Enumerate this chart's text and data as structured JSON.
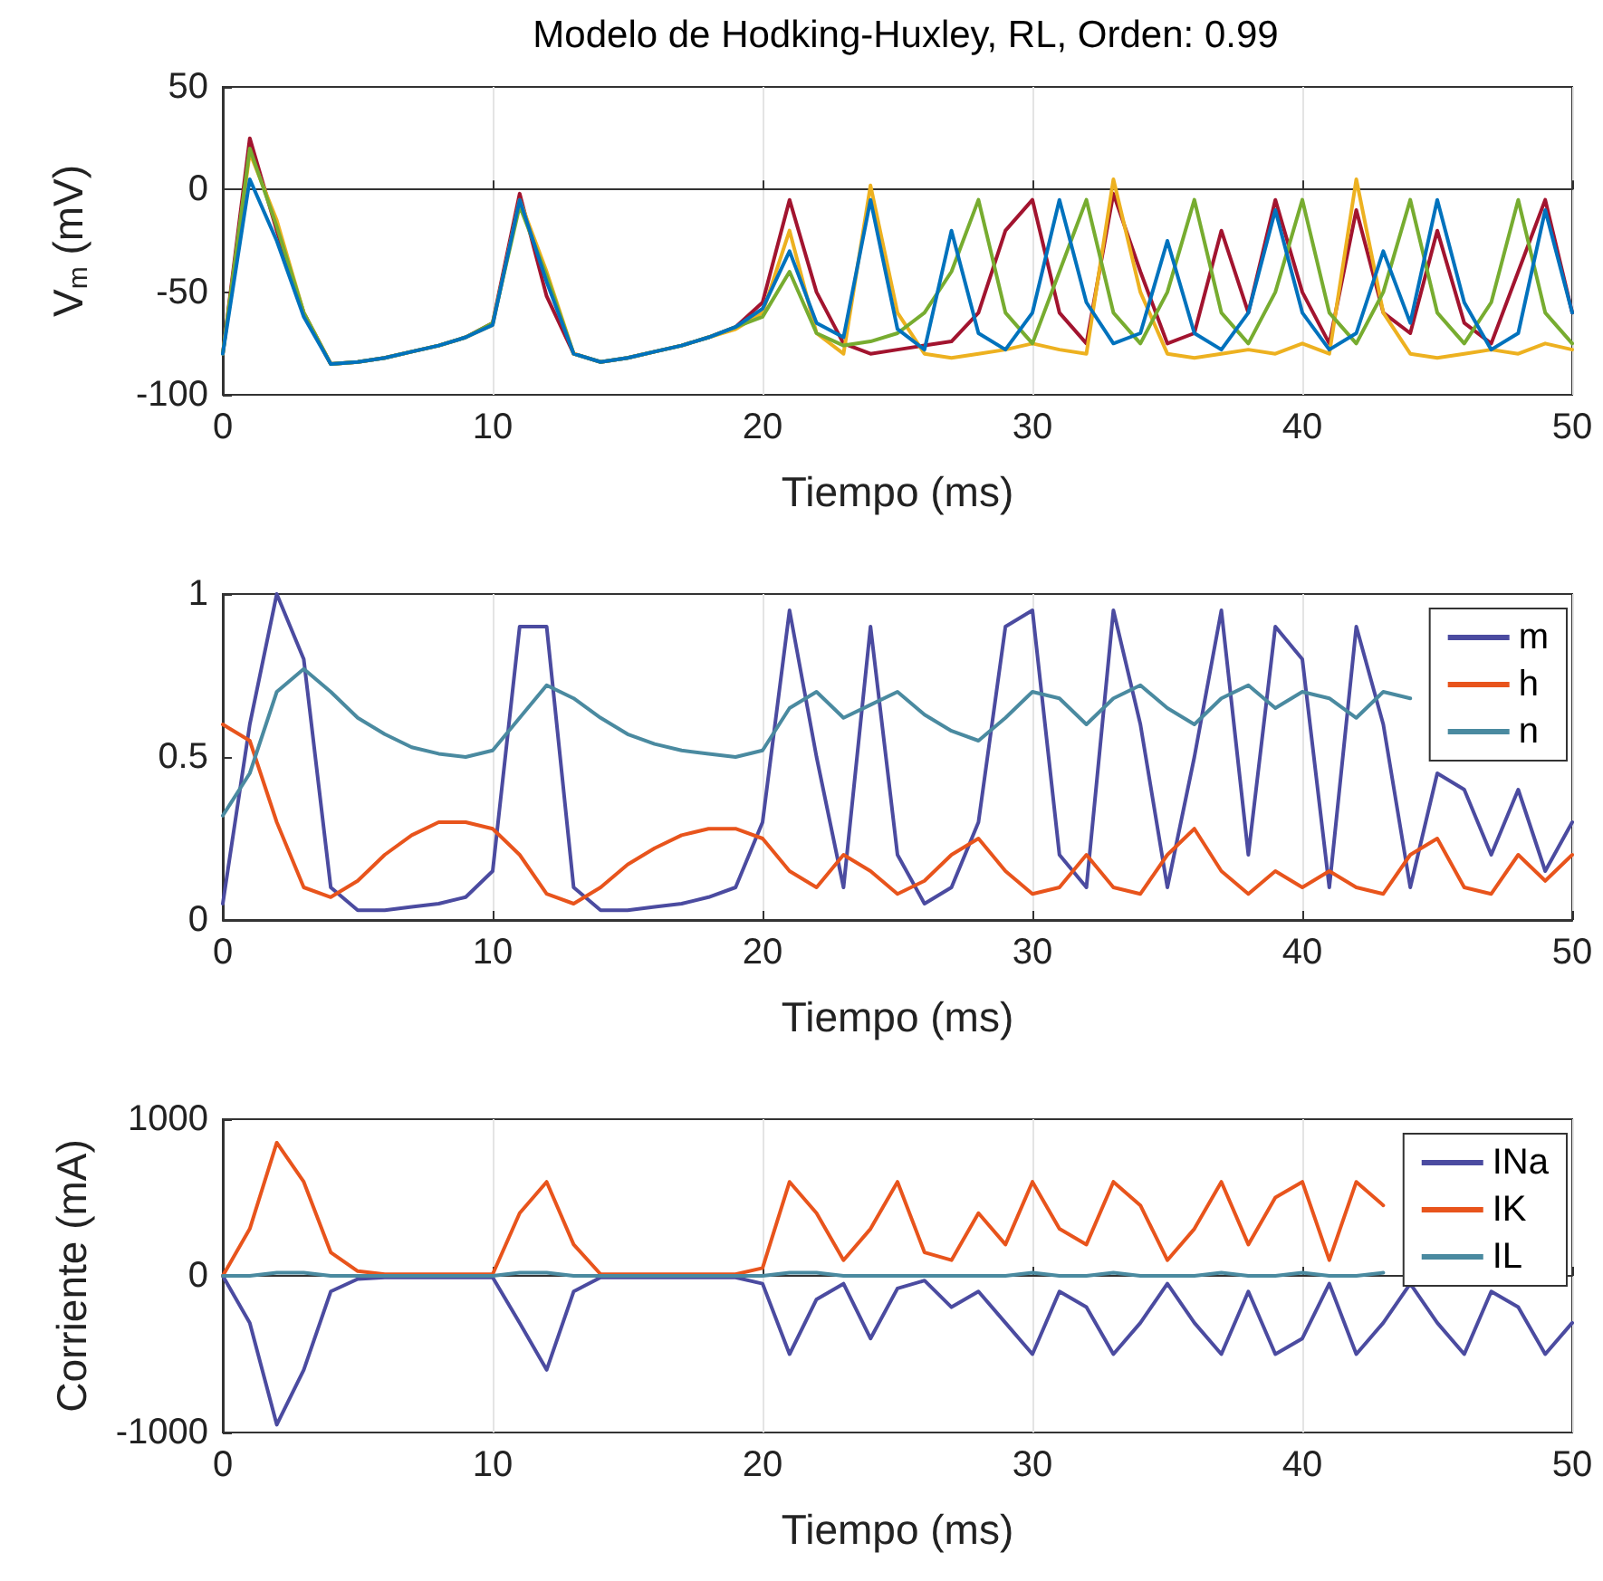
{
  "chart_data": [
    {
      "type": "line",
      "title": "Modelo de Hodking-Huxley, RL, Orden: 0.99",
      "xlabel": "Tiempo (ms)",
      "ylabel": "V$_{m}$ (mV)",
      "xlim": [
        0,
        50
      ],
      "xticks": [
        0,
        10,
        20,
        30,
        40,
        50
      ],
      "ylim": [
        -100,
        50
      ],
      "yticks": [
        -100,
        -50,
        0,
        50
      ],
      "grid": "x",
      "legend": false,
      "marker": "none",
      "line_style": "solid",
      "x": [
        0,
        1,
        2,
        3,
        4,
        5,
        6,
        7,
        8,
        9,
        10,
        11,
        12,
        13,
        14,
        15,
        16,
        17,
        18,
        19,
        20,
        21,
        22,
        23,
        24,
        25,
        26,
        27,
        28,
        29,
        30,
        31,
        32,
        33,
        34,
        35,
        36,
        37,
        38,
        39,
        40,
        41,
        42,
        43,
        44,
        45,
        46,
        47,
        48,
        49,
        50
      ],
      "series": [
        {
          "color": "#a2142f",
          "values": [
            -80,
            25,
            -20,
            -60,
            -85,
            -84,
            -82,
            -79,
            -76,
            -72,
            -65,
            -2,
            -52,
            -80,
            -84,
            -82,
            -79,
            -76,
            -72,
            -67,
            -55,
            -5,
            -50,
            -75,
            -80,
            -78,
            -76,
            -74,
            -60,
            -20,
            -5,
            -60,
            -75,
            -2,
            -40,
            -75,
            -70,
            -20,
            -60,
            -5,
            -50,
            -75,
            -10,
            -60,
            -70,
            -20,
            -65,
            -75,
            -40,
            -5,
            -60
          ]
        },
        {
          "color": "#edb120",
          "values": [
            -80,
            18,
            -15,
            -60,
            -85,
            -84,
            -82,
            -79,
            -76,
            -72,
            -66,
            -5,
            -40,
            -80,
            -84,
            -82,
            -79,
            -76,
            -72,
            -68,
            -60,
            -20,
            -70,
            -80,
            2,
            -60,
            -80,
            -82,
            -80,
            -78,
            -75,
            -78,
            -80,
            5,
            -50,
            -80,
            -82,
            -80,
            -78,
            -80,
            -75,
            -80,
            5,
            -60,
            -80,
            -82,
            -80,
            -78,
            -80,
            -75,
            -78
          ]
        },
        {
          "color": "#77ac30",
          "values": [
            -80,
            20,
            -18,
            -60,
            -85,
            -84,
            -82,
            -79,
            -76,
            -72,
            -65,
            -8,
            -42,
            -80,
            -84,
            -82,
            -79,
            -76,
            -72,
            -67,
            -62,
            -40,
            -70,
            -76,
            -74,
            -70,
            -60,
            -40,
            -5,
            -60,
            -75,
            -40,
            -5,
            -60,
            -75,
            -50,
            -5,
            -60,
            -75,
            -50,
            -5,
            -60,
            -75,
            -50,
            -5,
            -60,
            -75,
            -55,
            -5,
            -60,
            -75
          ]
        },
        {
          "color": "#0072bd",
          "values": [
            -80,
            5,
            -25,
            -62,
            -85,
            -84,
            -82,
            -79,
            -76,
            -72,
            -66,
            -5,
            -45,
            -80,
            -84,
            -82,
            -79,
            -76,
            -72,
            -67,
            -58,
            -30,
            -65,
            -72,
            -5,
            -68,
            -78,
            -20,
            -70,
            -78,
            -60,
            -5,
            -55,
            -75,
            -70,
            -25,
            -70,
            -78,
            -60,
            -10,
            -60,
            -78,
            -70,
            -30,
            -65,
            -5,
            -55,
            -78,
            -70,
            -10,
            -60
          ]
        }
      ]
    },
    {
      "type": "line",
      "xlabel": "Tiempo (ms)",
      "xlim": [
        0,
        50
      ],
      "xticks": [
        0,
        10,
        20,
        30,
        40,
        50
      ],
      "ylim": [
        0,
        1
      ],
      "yticks": [
        0,
        0.5,
        1
      ],
      "grid": "x",
      "legend": "top right",
      "marker": "none",
      "line_style": "solid",
      "x": [
        0,
        1,
        2,
        3,
        4,
        5,
        6,
        7,
        8,
        9,
        10,
        11,
        12,
        13,
        14,
        15,
        16,
        17,
        18,
        19,
        20,
        21,
        22,
        23,
        24,
        25,
        26,
        27,
        28,
        29,
        30,
        31,
        32,
        33,
        34,
        35,
        36,
        37,
        38,
        39,
        40,
        41,
        42,
        43,
        44,
        45,
        46,
        47,
        48,
        49,
        50
      ],
      "series": [
        {
          "name": "m",
          "color": "#4b4ba0",
          "values": [
            0.05,
            0.6,
            1,
            0.8,
            0.1,
            0.03,
            0.03,
            0.04,
            0.05,
            0.07,
            0.15,
            0.9,
            0.9,
            0.1,
            0.03,
            0.03,
            0.04,
            0.05,
            0.07,
            0.1,
            0.3,
            0.95,
            0.5,
            0.1,
            0.9,
            0.2,
            0.05,
            0.1,
            0.3,
            0.9,
            0.95,
            0.2,
            0.1,
            0.95,
            0.6,
            0.1,
            0.5,
            0.95,
            0.2,
            0.9,
            0.8,
            0.1,
            0.9,
            0.6,
            0.1,
            0.45,
            0.4,
            0.2,
            0.4,
            0.15,
            0.3
          ]
        },
        {
          "name": "h",
          "color": "#e8541c",
          "values": [
            0.6,
            0.55,
            0.3,
            0.1,
            0.07,
            0.12,
            0.2,
            0.26,
            0.3,
            0.3,
            0.28,
            0.2,
            0.08,
            0.05,
            0.1,
            0.17,
            0.22,
            0.26,
            0.28,
            0.28,
            0.25,
            0.15,
            0.1,
            0.2,
            0.15,
            0.08,
            0.12,
            0.2,
            0.25,
            0.15,
            0.08,
            0.1,
            0.2,
            0.1,
            0.08,
            0.2,
            0.28,
            0.15,
            0.08,
            0.15,
            0.1,
            0.15,
            0.1,
            0.08,
            0.2,
            0.25,
            0.1,
            0.08,
            0.2,
            0.12,
            0.2
          ]
        },
        {
          "name": "n",
          "color": "#4a8aa0",
          "values": [
            0.32,
            0.45,
            0.7,
            0.77,
            0.7,
            0.62,
            0.57,
            0.53,
            0.51,
            0.5,
            0.52,
            0.62,
            0.72,
            0.68,
            0.62,
            0.57,
            0.54,
            0.52,
            0.51,
            0.5,
            0.52,
            0.65,
            0.7,
            0.62,
            0.66,
            0.7,
            0.63,
            0.58,
            0.55,
            0.62,
            0.7,
            0.68,
            0.6,
            0.68,
            0.72,
            0.65,
            0.6,
            0.68,
            0.72,
            0.65,
            0.7,
            0.68,
            0.62,
            0.7,
            0.68,
            null,
            null,
            null,
            null,
            null,
            null
          ]
        }
      ]
    },
    {
      "type": "line",
      "xlabel": "Tiempo (ms)",
      "ylabel": "Corriente (mA)",
      "xlim": [
        0,
        50
      ],
      "xticks": [
        0,
        10,
        20,
        30,
        40,
        50
      ],
      "ylim": [
        -1000,
        1000
      ],
      "yticks": [
        -1000,
        0,
        1000
      ],
      "grid": "x",
      "legend": "top right",
      "marker": "none",
      "line_style": "solid",
      "x": [
        0,
        1,
        2,
        3,
        4,
        5,
        6,
        7,
        8,
        9,
        10,
        11,
        12,
        13,
        14,
        15,
        16,
        17,
        18,
        19,
        20,
        21,
        22,
        23,
        24,
        25,
        26,
        27,
        28,
        29,
        30,
        31,
        32,
        33,
        34,
        35,
        36,
        37,
        38,
        39,
        40,
        41,
        42,
        43,
        44,
        45,
        46,
        47,
        48,
        49,
        50
      ],
      "series": [
        {
          "name": "INa",
          "color": "#4b4ba0",
          "values": [
            0,
            -300,
            -950,
            -600,
            -100,
            -20,
            -10,
            -10,
            -10,
            -10,
            -10,
            -300,
            -600,
            -100,
            -10,
            -10,
            -10,
            -10,
            -10,
            -10,
            -50,
            -500,
            -150,
            -50,
            -400,
            -80,
            -30,
            -200,
            -100,
            -300,
            -500,
            -100,
            -200,
            -500,
            -300,
            -50,
            -300,
            -500,
            -100,
            -500,
            -400,
            -50,
            -500,
            -300,
            -50,
            -300,
            -500,
            -100,
            -200,
            -500,
            -300
          ]
        },
        {
          "name": "IK",
          "color": "#e8541c",
          "values": [
            0,
            300,
            850,
            600,
            150,
            30,
            10,
            10,
            10,
            10,
            10,
            400,
            600,
            200,
            10,
            10,
            10,
            10,
            10,
            10,
            50,
            600,
            400,
            100,
            300,
            600,
            150,
            100,
            400,
            200,
            600,
            300,
            200,
            600,
            450,
            100,
            300,
            600,
            200,
            500,
            600,
            100,
            600,
            450,
            null,
            null,
            null,
            null,
            null,
            null,
            null
          ]
        },
        {
          "name": "IL",
          "color": "#4a8aa0",
          "values": [
            0,
            0,
            20,
            20,
            0,
            0,
            0,
            0,
            0,
            0,
            0,
            20,
            20,
            0,
            0,
            0,
            0,
            0,
            0,
            0,
            0,
            20,
            20,
            0,
            0,
            0,
            0,
            0,
            0,
            0,
            20,
            0,
            0,
            20,
            0,
            0,
            0,
            20,
            0,
            0,
            20,
            0,
            0,
            20,
            null,
            null,
            null,
            null,
            null,
            null,
            null
          ]
        }
      ]
    }
  ]
}
